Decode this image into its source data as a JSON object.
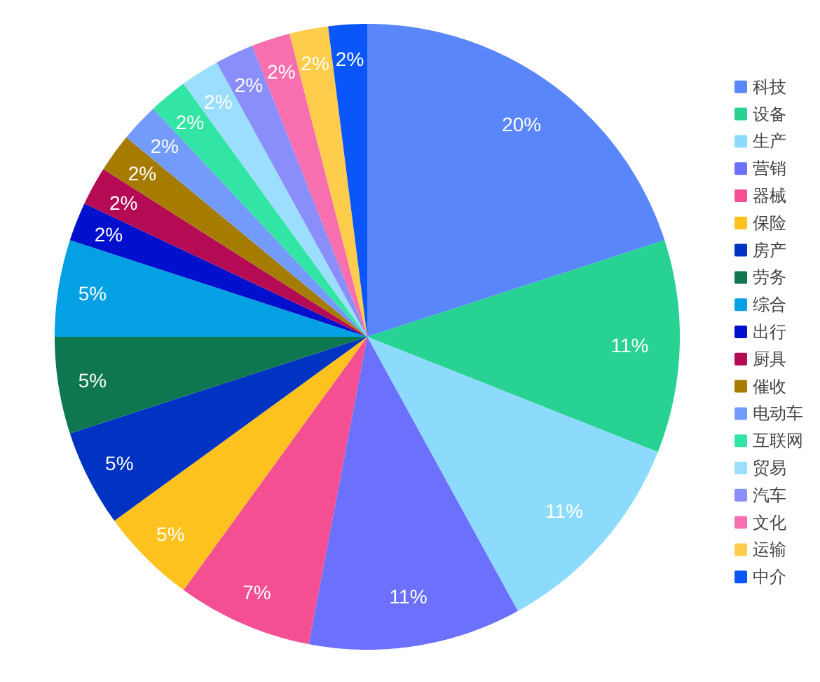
{
  "chart_data": {
    "type": "pie",
    "categories": [
      "科技",
      "设备",
      "生产",
      "营销",
      "器械",
      "保险",
      "房产",
      "劳务",
      "综合",
      "出行",
      "厨具",
      "催收",
      "电动车",
      "互联网",
      "贸易",
      "汽车",
      "文化",
      "运输",
      "中介"
    ],
    "values": [
      20,
      11,
      11,
      11,
      7,
      5,
      5,
      5,
      5,
      2,
      2,
      2,
      2,
      2,
      2,
      2,
      2,
      2,
      2
    ],
    "value_labels": [
      "20%",
      "11%",
      "11%",
      "11%",
      "7%",
      "5%",
      "5%",
      "5%",
      "5%",
      "2%",
      "2%",
      "2%",
      "2%",
      "2%",
      "2%",
      "2%",
      "2%",
      "2%",
      "2%"
    ],
    "colors": [
      "#5a86fb",
      "#27d292",
      "#8cdbfd",
      "#6b70fd",
      "#f54f93",
      "#fec21e",
      "#0033c1",
      "#0f7750",
      "#04a0e4",
      "#0010cc",
      "#b50a54",
      "#a67c00",
      "#729bfb",
      "#33e5a4",
      "#9cdefe",
      "#8a8efb",
      "#f76fae",
      "#fecd4b",
      "#0b56fb"
    ],
    "legend": "right"
  }
}
